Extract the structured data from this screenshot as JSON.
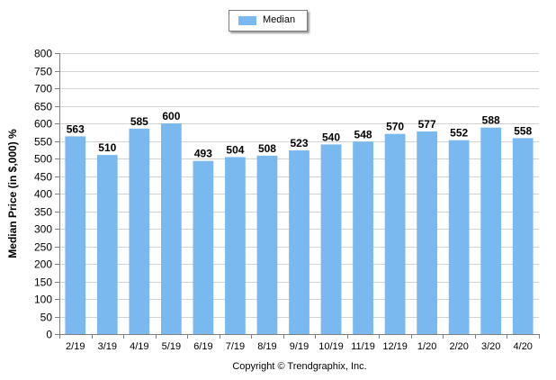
{
  "legend": {
    "label": "Median",
    "color": "#7ab8f0"
  },
  "footer": {
    "copyright": "Copyright © Trendgraphix, Inc."
  },
  "chart_data": {
    "type": "bar",
    "title": "",
    "xlabel": "",
    "ylabel": "Median Price (in $,000) %",
    "ylim": [
      0,
      800
    ],
    "ytick_step": 50,
    "yticks": [
      "0",
      "50",
      "100",
      "150",
      "200",
      "250",
      "300",
      "350",
      "400",
      "450",
      "500",
      "550",
      "600",
      "650",
      "700",
      "750",
      "800"
    ],
    "grid": true,
    "legend_position": "top-center",
    "categories": [
      "2/19",
      "3/19",
      "4/19",
      "5/19",
      "6/19",
      "7/19",
      "8/19",
      "9/19",
      "10/19",
      "11/19",
      "12/19",
      "1/20",
      "2/20",
      "3/20",
      "4/20"
    ],
    "series": [
      {
        "name": "Median",
        "color": "#7ab8f0",
        "values": [
          563,
          510,
          585,
          600,
          493,
          504,
          508,
          523,
          540,
          548,
          570,
          577,
          552,
          588,
          558
        ]
      }
    ],
    "data_labels": [
      "563",
      "510",
      "585",
      "600",
      "493",
      "504",
      "508",
      "523",
      "540",
      "548",
      "570",
      "577",
      "552",
      "588",
      "558"
    ]
  }
}
